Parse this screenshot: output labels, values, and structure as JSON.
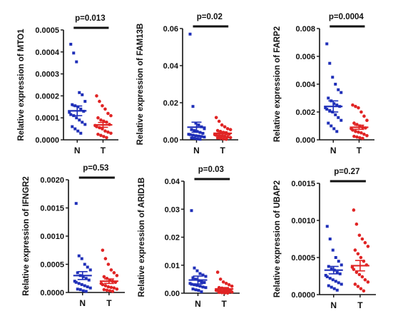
{
  "colors": {
    "N": "#1f2fb8",
    "T": "#e02424",
    "axis": "#111111"
  },
  "chart_data": [
    {
      "type": "scatter",
      "ylabel": "Relative expression of MTO1",
      "p_label": "p=0.013",
      "categories": [
        "N",
        "T"
      ],
      "ylim": [
        0,
        0.0005
      ],
      "yticks": [
        0,
        0.0001,
        0.0002,
        0.0003,
        0.0004,
        0.0005
      ],
      "ytick_labels": [
        "0.0000",
        "0.0001",
        "0.0002",
        "0.0003",
        "0.0004",
        "0.0005"
      ],
      "series": [
        {
          "category": "N",
          "mean": 0.000132,
          "sem": 2.2e-05,
          "values": [
            0.000435,
            0.000395,
            0.000355,
            0.000215,
            0.000205,
            0.000175,
            0.00016,
            0.000155,
            0.00015,
            0.00014,
            0.00013,
            0.000125,
            0.000115,
            0.00011,
            0.0001,
            9e-05,
            8e-05,
            7e-05,
            6e-05,
            5e-05,
            4e-05,
            3e-05
          ]
        },
        {
          "category": "T",
          "mean": 6.8e-05,
          "sem": 1.1e-05,
          "values": [
            0.0002,
            0.000175,
            0.000155,
            0.00014,
            0.00012,
            0.00011,
            0.0001,
            9e-05,
            8.5e-05,
            8e-05,
            7e-05,
            6.5e-05,
            6e-05,
            5.5e-05,
            5e-05,
            4e-05,
            3.5e-05,
            3e-05,
            2.5e-05,
            2e-05,
            1.5e-05,
            1e-05
          ]
        }
      ]
    },
    {
      "type": "scatter",
      "ylabel": "Relative expression of FAM13B",
      "p_label": "p=0.02",
      "categories": [
        "N",
        "T"
      ],
      "ylim": [
        0,
        0.06
      ],
      "yticks": [
        0,
        0.02,
        0.04,
        0.06
      ],
      "ytick_labels": [
        "0.00",
        "0.02",
        "0.04",
        "0.06"
      ],
      "series": [
        {
          "category": "N",
          "mean": 0.0068,
          "sem": 0.0027,
          "values": [
            0.057,
            0.018,
            0.009,
            0.008,
            0.007,
            0.006,
            0.0055,
            0.005,
            0.0045,
            0.004,
            0.0035,
            0.003,
            0.0028,
            0.0025,
            0.0022,
            0.002,
            0.0018,
            0.0015,
            0.001,
            0.0008,
            0.0005,
            0.0003
          ]
        },
        {
          "category": "T",
          "mean": 0.0035,
          "sem": 0.0008,
          "values": [
            0.012,
            0.01,
            0.008,
            0.007,
            0.006,
            0.0055,
            0.005,
            0.0045,
            0.004,
            0.0035,
            0.003,
            0.0028,
            0.0025,
            0.0022,
            0.002,
            0.0018,
            0.0015,
            0.0012,
            0.001,
            0.0008,
            0.0005,
            0.0003
          ]
        }
      ]
    },
    {
      "type": "scatter",
      "ylabel": "Relative expression of FARP2",
      "p_label": "p=0.0004",
      "categories": [
        "N",
        "T"
      ],
      "ylim": [
        0,
        0.008
      ],
      "yticks": [
        0,
        0.002,
        0.004,
        0.006,
        0.008
      ],
      "ytick_labels": [
        "0.000",
        "0.002",
        "0.004",
        "0.006",
        "0.008"
      ],
      "series": [
        {
          "category": "N",
          "mean": 0.0024,
          "sem": 0.0004,
          "values": [
            0.0069,
            0.0055,
            0.0045,
            0.004,
            0.0036,
            0.0034,
            0.003,
            0.0028,
            0.0026,
            0.0025,
            0.0024,
            0.0023,
            0.0022,
            0.0021,
            0.002,
            0.0018,
            0.0016,
            0.0014,
            0.0012,
            0.001,
            0.0008,
            0.0006
          ]
        },
        {
          "category": "T",
          "mean": 0.0009,
          "sem": 0.00015,
          "values": [
            0.0025,
            0.0024,
            0.0023,
            0.002,
            0.0017,
            0.0014,
            0.0012,
            0.0011,
            0.001,
            0.0009,
            0.00085,
            0.0008,
            0.0007,
            0.0006,
            0.00055,
            0.0005,
            0.0004,
            0.0003,
            0.00025,
            0.0002,
            0.00015,
            0.0001
          ]
        }
      ]
    },
    {
      "type": "scatter",
      "ylabel": "Relative expression of IFNGR2",
      "p_label": "p=0.53",
      "categories": [
        "N",
        "T"
      ],
      "ylim": [
        0,
        0.002
      ],
      "yticks": [
        0,
        0.0005,
        0.001,
        0.0015,
        0.002
      ],
      "ytick_labels": [
        "0.0000",
        "0.0005",
        "0.0010",
        "0.0015",
        "0.0020"
      ],
      "series": [
        {
          "category": "N",
          "mean": 0.0003,
          "sem": 7e-05,
          "values": [
            0.00158,
            0.00065,
            0.0006,
            0.0005,
            0.00045,
            0.0004,
            0.00035,
            0.0003,
            0.00028,
            0.00025,
            0.00022,
            0.0002,
            0.00018,
            0.00016,
            0.00014,
            0.00012,
            0.0001,
            8e-05,
            6e-05,
            5e-05,
            3e-05,
            2e-05
          ]
        },
        {
          "category": "T",
          "mean": 0.0002,
          "sem": 4e-05,
          "values": [
            0.00075,
            0.0006,
            0.0005,
            0.0004,
            0.00035,
            0.0003,
            0.00028,
            0.00025,
            0.00022,
            0.0002,
            0.00018,
            0.00016,
            0.00014,
            0.00012,
            0.0001,
            9e-05,
            8e-05,
            6e-05,
            5e-05,
            4e-05,
            3e-05,
            2e-05
          ]
        }
      ]
    },
    {
      "type": "scatter",
      "ylabel": "Relative expression of ARID1B",
      "p_label": "p=0.03",
      "categories": [
        "N",
        "T"
      ],
      "ylim": [
        0,
        0.04
      ],
      "yticks": [
        0,
        0.01,
        0.02,
        0.03,
        0.04
      ],
      "ytick_labels": [
        "0.00",
        "0.01",
        "0.02",
        "0.03",
        "0.04"
      ],
      "series": [
        {
          "category": "N",
          "mean": 0.0047,
          "sem": 0.0014,
          "values": [
            0.0295,
            0.009,
            0.008,
            0.007,
            0.0065,
            0.006,
            0.0055,
            0.005,
            0.0045,
            0.004,
            0.0038,
            0.0035,
            0.0032,
            0.003,
            0.0028,
            0.0025,
            0.0022,
            0.002,
            0.0015,
            0.0012,
            0.001,
            0.0005
          ]
        },
        {
          "category": "T",
          "mean": 0.0015,
          "sem": 0.0005,
          "values": [
            0.0075,
            0.005,
            0.004,
            0.0035,
            0.003,
            0.0025,
            0.002,
            0.0018,
            0.0016,
            0.0014,
            0.0012,
            0.001,
            0.0009,
            0.0008,
            0.0007,
            0.0006,
            0.0005,
            0.0004,
            0.0003,
            0.0002,
            0.0001,
            5e-05
          ]
        }
      ]
    },
    {
      "type": "scatter",
      "ylabel": "Relative expression of UBAP2",
      "p_label": "p=0.27",
      "categories": [
        "N",
        "T"
      ],
      "ylim": [
        0,
        0.0015
      ],
      "yticks": [
        0,
        0.0005,
        0.001,
        0.0015
      ],
      "ytick_labels": [
        "0.0000",
        "0.0005",
        "0.0010",
        "0.0015"
      ],
      "series": [
        {
          "category": "N",
          "mean": 0.00033,
          "sem": 5e-05,
          "values": [
            0.00092,
            0.00075,
            0.0006,
            0.0005,
            0.00045,
            0.0004,
            0.00038,
            0.00035,
            0.00033,
            0.0003,
            0.00028,
            0.00026,
            0.00024,
            0.00022,
            0.0002,
            0.00018,
            0.00016,
            0.00014,
            0.00012,
            0.0001,
            8e-05,
            6e-05
          ]
        },
        {
          "category": "T",
          "mean": 0.00039,
          "sem": 7e-05,
          "values": [
            0.00114,
            0.00095,
            0.0008,
            0.00075,
            0.0007,
            0.00065,
            0.0006,
            0.00055,
            0.0005,
            0.00045,
            0.0004,
            0.00037,
            0.00034,
            0.0003,
            0.00027,
            0.00024,
            0.0002,
            0.00017,
            0.00014,
            0.00011,
            8e-05,
            5e-05
          ]
        }
      ]
    }
  ]
}
